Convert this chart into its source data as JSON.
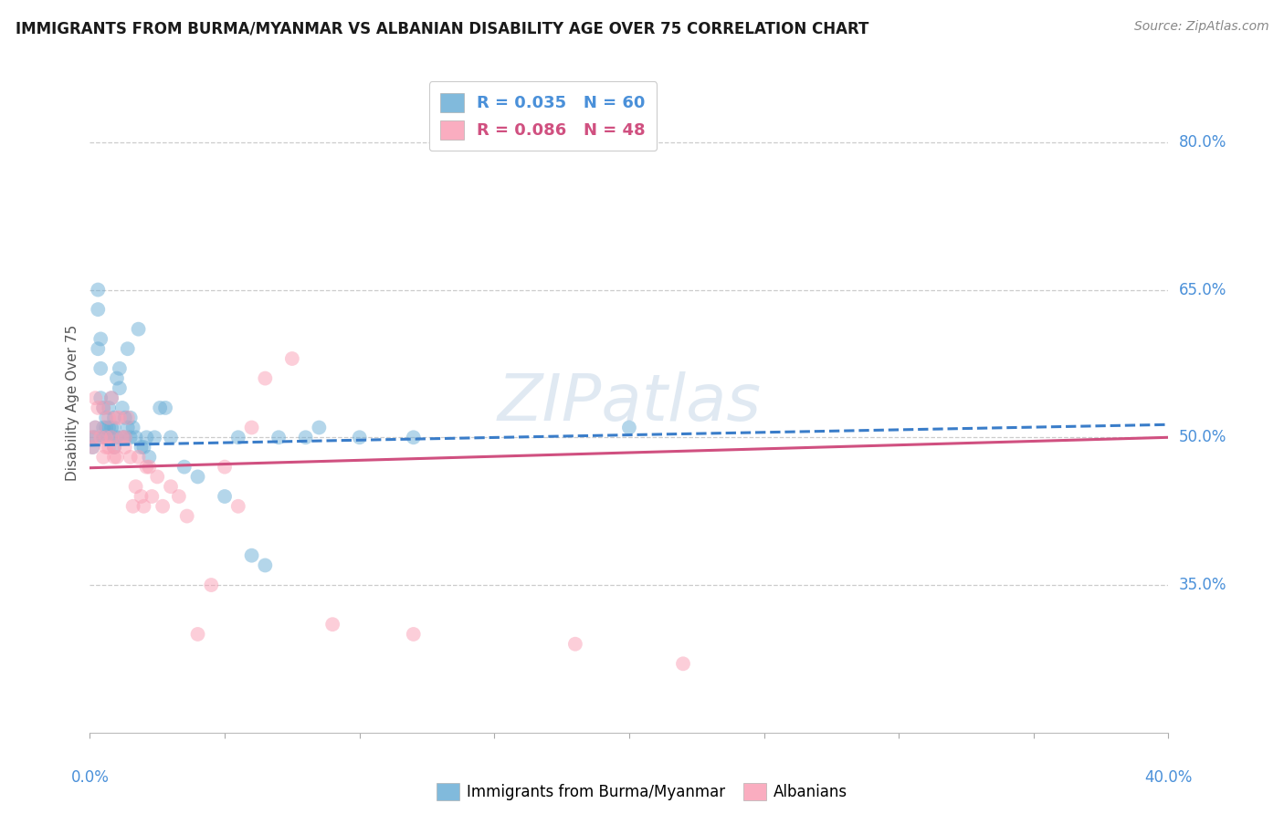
{
  "title": "IMMIGRANTS FROM BURMA/MYANMAR VS ALBANIAN DISABILITY AGE OVER 75 CORRELATION CHART",
  "source": "Source: ZipAtlas.com",
  "ylabel": "Disability Age Over 75",
  "color_blue": "#6baed6",
  "color_pink": "#fa9fb5",
  "trendline_blue": "#3a7dc9",
  "trendline_pink": "#d05080",
  "watermark": "ZIPatlas",
  "legend1_r": "R = 0.035",
  "legend1_n": "N = 60",
  "legend2_r": "R = 0.086",
  "legend2_n": "N = 48",
  "ytick_positions": [
    0.35,
    0.5,
    0.65,
    0.8
  ],
  "ytick_labels": [
    "35.0%",
    "50.0%",
    "65.0%",
    "80.0%"
  ],
  "xlim": [
    0,
    0.4
  ],
  "ylim": [
    0.2,
    0.87
  ],
  "blue_points_x": [
    0.001,
    0.001,
    0.002,
    0.002,
    0.003,
    0.003,
    0.003,
    0.004,
    0.004,
    0.004,
    0.005,
    0.005,
    0.005,
    0.006,
    0.006,
    0.006,
    0.007,
    0.007,
    0.007,
    0.008,
    0.008,
    0.008,
    0.009,
    0.009,
    0.009,
    0.01,
    0.01,
    0.011,
    0.011,
    0.012,
    0.012,
    0.013,
    0.013,
    0.014,
    0.014,
    0.015,
    0.015,
    0.016,
    0.017,
    0.018,
    0.019,
    0.02,
    0.021,
    0.022,
    0.024,
    0.026,
    0.028,
    0.03,
    0.035,
    0.04,
    0.05,
    0.055,
    0.06,
    0.065,
    0.07,
    0.08,
    0.085,
    0.1,
    0.12,
    0.2
  ],
  "blue_points_y": [
    0.49,
    0.5,
    0.51,
    0.5,
    0.65,
    0.63,
    0.59,
    0.6,
    0.57,
    0.54,
    0.53,
    0.51,
    0.5,
    0.52,
    0.51,
    0.5,
    0.53,
    0.51,
    0.5,
    0.54,
    0.51,
    0.5,
    0.52,
    0.51,
    0.49,
    0.56,
    0.5,
    0.57,
    0.55,
    0.53,
    0.5,
    0.52,
    0.5,
    0.59,
    0.51,
    0.52,
    0.5,
    0.51,
    0.5,
    0.61,
    0.49,
    0.49,
    0.5,
    0.48,
    0.5,
    0.53,
    0.53,
    0.5,
    0.47,
    0.46,
    0.44,
    0.5,
    0.38,
    0.37,
    0.5,
    0.5,
    0.51,
    0.5,
    0.5,
    0.51
  ],
  "pink_points_x": [
    0.001,
    0.001,
    0.002,
    0.002,
    0.003,
    0.004,
    0.005,
    0.005,
    0.006,
    0.006,
    0.007,
    0.007,
    0.008,
    0.008,
    0.009,
    0.009,
    0.01,
    0.01,
    0.011,
    0.012,
    0.013,
    0.013,
    0.014,
    0.015,
    0.016,
    0.017,
    0.018,
    0.019,
    0.02,
    0.021,
    0.022,
    0.023,
    0.025,
    0.027,
    0.03,
    0.033,
    0.036,
    0.04,
    0.045,
    0.05,
    0.055,
    0.06,
    0.065,
    0.075,
    0.09,
    0.12,
    0.18,
    0.22
  ],
  "pink_points_y": [
    0.5,
    0.49,
    0.54,
    0.51,
    0.53,
    0.5,
    0.53,
    0.48,
    0.5,
    0.49,
    0.52,
    0.49,
    0.54,
    0.5,
    0.49,
    0.48,
    0.52,
    0.48,
    0.52,
    0.5,
    0.5,
    0.49,
    0.52,
    0.48,
    0.43,
    0.45,
    0.48,
    0.44,
    0.43,
    0.47,
    0.47,
    0.44,
    0.46,
    0.43,
    0.45,
    0.44,
    0.42,
    0.3,
    0.35,
    0.47,
    0.43,
    0.51,
    0.56,
    0.58,
    0.31,
    0.3,
    0.29,
    0.27
  ]
}
